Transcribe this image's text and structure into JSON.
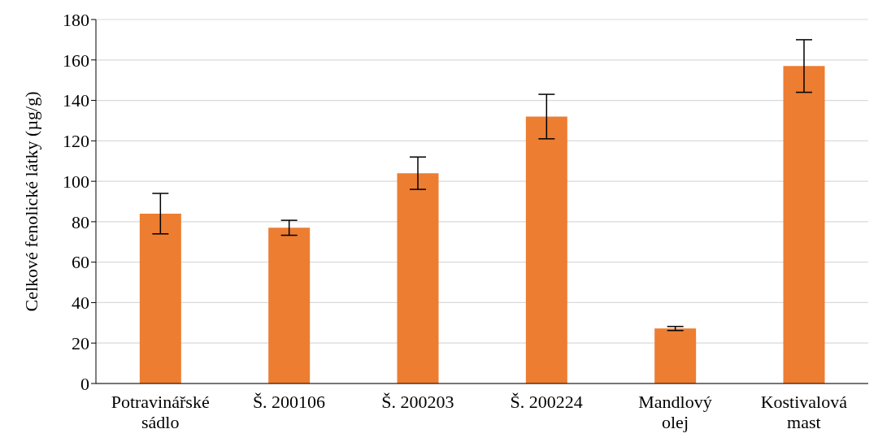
{
  "chart_data": {
    "type": "bar",
    "ylabel": "Celkové fenolické látky (µg/g)",
    "categories": [
      "Potravinářské sádlo",
      "Š. 200106",
      "Š. 200203",
      "Š. 200224",
      "Mandlový olej",
      "Kostivalová mast"
    ],
    "values": [
      84,
      77,
      104,
      132,
      27.2,
      157
    ],
    "errors": [
      10,
      3.7,
      8,
      11,
      1,
      13
    ],
    "color": "#ed7d31",
    "ylim": [
      0,
      180
    ],
    "yticks": [
      0,
      20,
      40,
      60,
      80,
      100,
      120,
      140,
      160,
      180
    ],
    "grid": "y",
    "legend": false
  }
}
